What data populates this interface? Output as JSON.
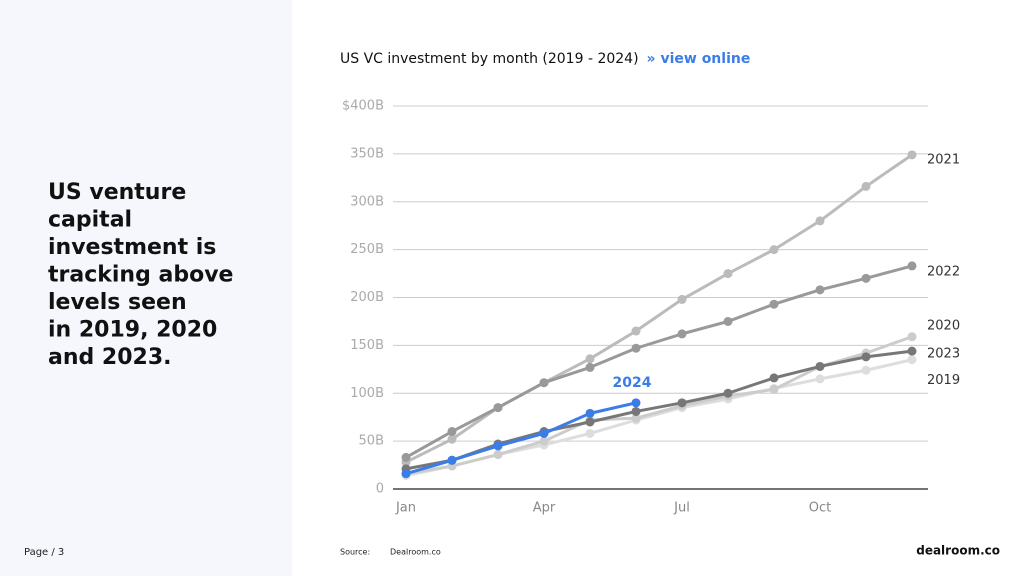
{
  "headline": [
    "US venture",
    "capital",
    "investment is",
    "tracking above",
    "levels seen",
    "in 2019, 2020",
    "and 2023."
  ],
  "footer": {
    "page": "Page / 3",
    "source_label": "Source:",
    "source": "Dealroom.co",
    "logo": "dealroom.co"
  },
  "chart_data": {
    "type": "line",
    "title": "US VC investment by month (2019 - 2024)",
    "link": "» view online",
    "categories": [
      "Jan",
      null,
      null,
      "Apr",
      null,
      null,
      "Jul",
      null,
      null,
      "Oct",
      null,
      null
    ],
    "ylim": [
      0,
      400
    ],
    "yticks": [
      0,
      {
        "value": 50,
        "label": "50B"
      },
      {
        "value": 100,
        "label": "100B"
      },
      {
        "value": 150,
        "label": "150B"
      },
      {
        "value": 200,
        "label": "200B"
      },
      {
        "value": 250,
        "label": "250B"
      },
      {
        "value": 300,
        "label": "300B"
      },
      {
        "value": 350,
        "label": "350B"
      },
      {
        "value": 400,
        "label": "$400B"
      }
    ],
    "grid": true,
    "series": [
      {
        "name": "2019",
        "color": "#dddddd",
        "values": [
          14,
          24,
          36,
          46,
          58,
          72,
          85,
          94,
          105,
          115,
          124,
          135
        ]
      },
      {
        "name": "2020",
        "color": "#cccccc",
        "values": [
          16,
          24,
          36,
          50,
          72,
          74,
          87,
          97,
          104,
          128,
          142,
          159
        ]
      },
      {
        "name": "2021",
        "color": "#bbbbbb",
        "values": [
          28,
          52,
          85,
          111,
          136,
          165,
          198,
          225,
          250,
          280,
          316,
          349
        ]
      },
      {
        "name": "2022",
        "color": "#999999",
        "values": [
          33,
          60,
          85,
          111,
          127,
          147,
          162,
          175,
          193,
          208,
          220,
          233
        ]
      },
      {
        "name": "2023",
        "color": "#777777",
        "values": [
          21,
          30,
          47,
          60,
          70,
          81,
          90,
          100,
          116,
          128,
          138,
          144
        ]
      },
      {
        "name": "2024",
        "color": "#3b7de8",
        "values": [
          16,
          30,
          45,
          58,
          79,
          90,
          null,
          null,
          null,
          null,
          null,
          null
        ]
      }
    ]
  }
}
